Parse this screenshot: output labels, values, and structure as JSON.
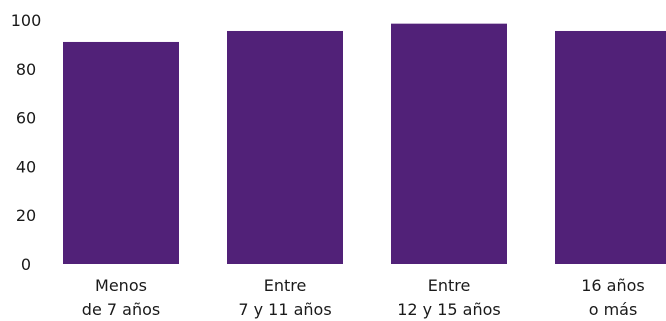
{
  "chart_data": {
    "type": "bar",
    "categories": [
      [
        "Menos",
        "de 7 años"
      ],
      [
        "Entre",
        "7 y 11 años"
      ],
      [
        "Entre",
        "12 y 15 años"
      ],
      [
        "16 años",
        "o más"
      ]
    ],
    "values": [
      91,
      95.5,
      98.5,
      95.5
    ],
    "ylim": [
      0,
      100
    ],
    "yticks": [
      "0",
      "20",
      "40",
      "60",
      "80",
      "100"
    ],
    "bar_color": "#512178",
    "grid": false,
    "legend": "none"
  }
}
